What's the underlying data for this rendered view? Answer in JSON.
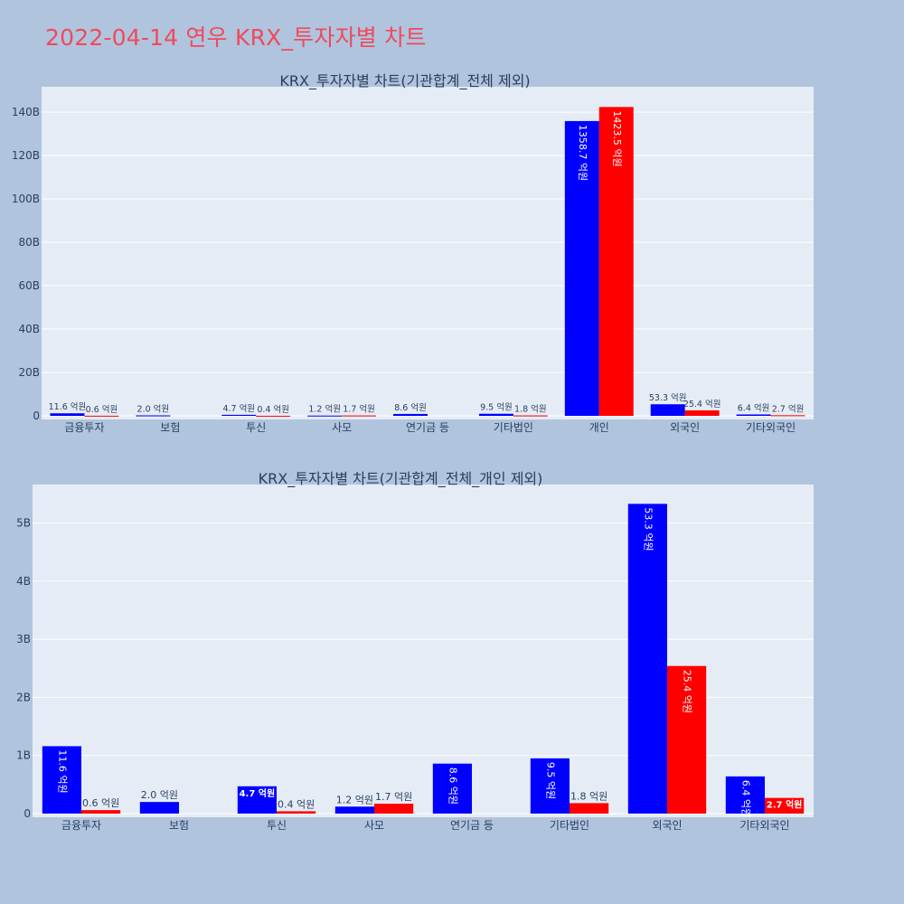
{
  "page_title": "2022-04-14 연우 KRX_투자자별 차트",
  "colors": {
    "background": "#b0c4de",
    "plot_bg": "#e5ecf6",
    "title": "#ef4a5b",
    "series_buy": "#0000ff",
    "series_sell": "#ff0000",
    "text": "#2a3f5f"
  },
  "chart_data": [
    {
      "type": "bar",
      "title": "KRX_투자자별 차트(기관합계_전체 제외)",
      "xlabel": "",
      "ylabel": "",
      "categories": [
        "금융투자",
        "보험",
        "투신",
        "사모",
        "연기금 등",
        "기타법인",
        "개인",
        "외국인",
        "기타외국인"
      ],
      "ylim": [
        0,
        150000000000
      ],
      "yticks": [
        0,
        20000000000,
        40000000000,
        60000000000,
        80000000000,
        100000000000,
        120000000000,
        140000000000
      ],
      "ytick_labels": [
        "0",
        "20B",
        "40B",
        "60B",
        "80B",
        "100B",
        "120B",
        "140B"
      ],
      "grid": true,
      "series": [
        {
          "color": "#0000ff",
          "values": [
            1160000000,
            200000000,
            470000000,
            120000000,
            860000000,
            950000000,
            135870000000,
            5330000000,
            640000000
          ],
          "labels": [
            "11.6 억원",
            "2.0 억원",
            "4.7 억원",
            "1.2 억원",
            "8.6 억원",
            "9.5 억원",
            "1358.7 억원",
            "53.3 억원",
            "6.4 억원"
          ]
        },
        {
          "color": "#ff0000",
          "values": [
            60000000,
            0,
            40000000,
            170000000,
            0,
            180000000,
            142350000000,
            2540000000,
            270000000
          ],
          "labels": [
            "0.6 억원",
            "",
            "0.4 억원",
            "1.7 억원",
            "",
            "1.8 억원",
            "1423.5 억원",
            "25.4 억원",
            "2.7 억원"
          ]
        }
      ]
    },
    {
      "type": "bar",
      "title": "KRX_투자자별 차트(기관합계_전체_개인 제외)",
      "xlabel": "",
      "ylabel": "",
      "categories": [
        "금융투자",
        "보험",
        "투신",
        "사모",
        "연기금 등",
        "기타법인",
        "외국인",
        "기타외국인"
      ],
      "ylim": [
        0,
        5600000000
      ],
      "yticks": [
        0,
        1000000000,
        2000000000,
        3000000000,
        4000000000,
        5000000000
      ],
      "ytick_labels": [
        "0",
        "1B",
        "2B",
        "3B",
        "4B",
        "5B"
      ],
      "grid": true,
      "series": [
        {
          "color": "#0000ff",
          "values": [
            1160000000,
            200000000,
            470000000,
            120000000,
            860000000,
            950000000,
            5330000000,
            640000000
          ],
          "labels": [
            "11.6 억원",
            "2.0 억원",
            "4.7 억원",
            "1.2 억원",
            "8.6 억원",
            "9.5 억원",
            "53.3 억원",
            "6.4 억원"
          ]
        },
        {
          "color": "#ff0000",
          "values": [
            60000000,
            0,
            40000000,
            170000000,
            0,
            180000000,
            2540000000,
            270000000
          ],
          "labels": [
            "0.6 억원",
            "",
            "0.4 억원",
            "1.7 억원",
            "",
            "1.8 억원",
            "25.4 억원",
            "2.7 억원"
          ]
        }
      ]
    }
  ]
}
